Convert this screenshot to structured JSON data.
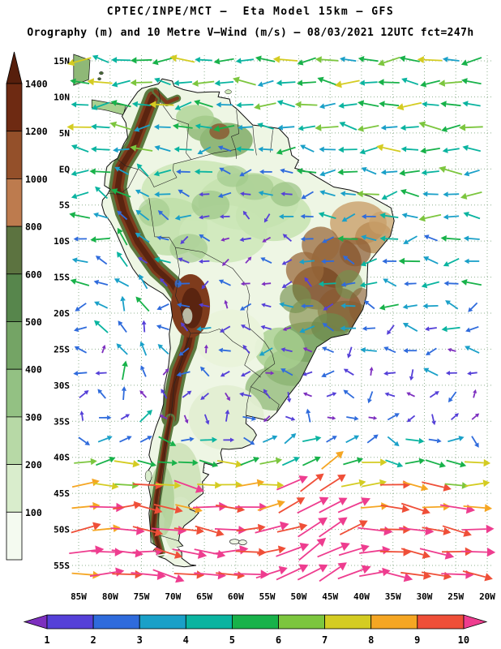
{
  "header": {
    "title_line1": "CPTEC/INPE/MCT —  Eta Model 15km — GFS",
    "title_line2": "Orography (m) and 10 Metre V—Wind (m/s) — 08/03/2021 12UTC fct=247h"
  },
  "model_info": {
    "source": "CPTEC/INPE/MCT",
    "model": "Eta Model 15km",
    "boundary_model": "GFS",
    "field_shaded": "Orography (m)",
    "field_vector": "10 Metre V-Wind (m/s)",
    "date": "08/03/2021",
    "cycle": "12UTC",
    "forecast": "fct=247h"
  },
  "axes": {
    "lon_ticks": [
      {
        "label": "85W",
        "value": -85
      },
      {
        "label": "80W",
        "value": -80
      },
      {
        "label": "75W",
        "value": -75
      },
      {
        "label": "70W",
        "value": -70
      },
      {
        "label": "65W",
        "value": -65
      },
      {
        "label": "60W",
        "value": -60
      },
      {
        "label": "55W",
        "value": -55
      },
      {
        "label": "50W",
        "value": -50
      },
      {
        "label": "45W",
        "value": -45
      },
      {
        "label": "40W",
        "value": -40
      },
      {
        "label": "35W",
        "value": -35
      },
      {
        "label": "30W",
        "value": -30
      },
      {
        "label": "25W",
        "value": -25
      },
      {
        "label": "20W",
        "value": -20
      }
    ],
    "lat_ticks": [
      {
        "label": "15N",
        "value": 15
      },
      {
        "label": "10N",
        "value": 10
      },
      {
        "label": "5N",
        "value": 5
      },
      {
        "label": "EQ",
        "value": 0
      },
      {
        "label": "5S",
        "value": -5
      },
      {
        "label": "10S",
        "value": -10
      },
      {
        "label": "15S",
        "value": -15
      },
      {
        "label": "20S",
        "value": -20
      },
      {
        "label": "25S",
        "value": -25
      },
      {
        "label": "30S",
        "value": -30
      },
      {
        "label": "35S",
        "value": -35
      },
      {
        "label": "40S",
        "value": -40
      },
      {
        "label": "45S",
        "value": -45
      },
      {
        "label": "50S",
        "value": -50
      },
      {
        "label": "55S",
        "value": -55
      }
    ]
  },
  "elevation_legend": {
    "units": "m",
    "arrow_color": "#571f0c",
    "segments": [
      {
        "label": "1400",
        "color": "#6e2a12"
      },
      {
        "label": "1200",
        "color": "#94502a"
      },
      {
        "label": "1000",
        "color": "#bd7b4e"
      },
      {
        "label": "800",
        "color": "#5c7340"
      },
      {
        "label": "600",
        "color": "#57864c"
      },
      {
        "label": "500",
        "color": "#74a465"
      },
      {
        "label": "400",
        "color": "#93c183"
      },
      {
        "label": "300",
        "color": "#b7d9a6"
      },
      {
        "label": "200",
        "color": "#d9edcc"
      },
      {
        "label": "100",
        "color": "#f4faf0"
      }
    ]
  },
  "wind_legend": {
    "units": "m/s",
    "labels": [
      "1",
      "2",
      "3",
      "4",
      "5",
      "6",
      "7",
      "8",
      "9",
      "10"
    ],
    "colors": [
      "#7d2fbf",
      "#5540d8",
      "#2f6bdc",
      "#1aa0c8",
      "#0ab4a0",
      "#18b24a",
      "#7cc63e",
      "#d4cc22",
      "#f5a623",
      "#ef4f38",
      "#ee3d8f"
    ]
  },
  "chart_data": {
    "type": "heatmap",
    "title": "Orography (m) and 10 Metre V-Wind (m/s)",
    "region": "South America",
    "x_range_deg": [
      -85,
      -20
    ],
    "y_range_deg": [
      -55,
      15
    ],
    "grid_spacing_deg": 5,
    "grid": "dotted",
    "shaded_field": {
      "name": "Orography",
      "units": "m",
      "levels": [
        100,
        200,
        300,
        400,
        500,
        600,
        800,
        1000,
        1200,
        1400
      ],
      "high_terrain": "Andes cordillera along the Pacific coast (>1400 m, dark brown), Altiplano bulge near 67W/19S, Brazilian highlands (600-1200 m) in east-central Brazil, Guiana highlands near 62W/4N"
    },
    "vector_field": {
      "name": "10 Metre V-Wind",
      "units": "m/s",
      "speed_levels": [
        1,
        2,
        3,
        4,
        5,
        6,
        7,
        8,
        9,
        10
      ]
    },
    "wind_regimes": [
      {
        "name": "tropical-trade-easterlies",
        "area": "ocean north of ~15S",
        "direction": "toward west",
        "speed_ms": [
          3,
          7
        ]
      },
      {
        "name": "continental-light-winds",
        "area": "Amazon basin and central Brazil",
        "direction": "variable",
        "speed_ms": [
          1,
          3
        ]
      },
      {
        "name": "coastal-southerlies",
        "area": "Pacific coast of Peru and north Chile",
        "direction": "toward north",
        "speed_ms": [
          3,
          5
        ]
      },
      {
        "name": "southern-ocean-westerlies",
        "area": "south of ~40S",
        "direction": "toward east-northeast",
        "speed_ms": [
          7,
          11
        ]
      }
    ]
  }
}
